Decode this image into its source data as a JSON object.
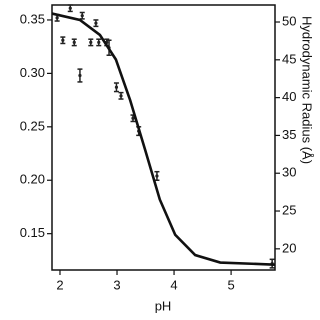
{
  "chart_data": {
    "type": "scatter",
    "xlabel": "pH",
    "y2label": "Hydrodynamic Radius (Å)",
    "xlim": [
      1.86,
      5.77
    ],
    "xticks": [
      2,
      3,
      4,
      5
    ],
    "ylim": [
      0.116,
      0.364
    ],
    "yticks": [
      {
        "value": 0.15,
        "label": "0.15"
      },
      {
        "value": 0.2,
        "label": "0.20"
      },
      {
        "value": 0.25,
        "label": "0.25"
      },
      {
        "value": 0.3,
        "label": "0.30"
      },
      {
        "value": 0.35,
        "label": "0.35"
      }
    ],
    "y2lim": [
      17.2,
      52.25
    ],
    "y2ticks": [
      20,
      25,
      30,
      35,
      40,
      45,
      50
    ],
    "series": [
      {
        "type": "errorbar",
        "color": "#222222",
        "x": [
          1.95,
          2.05,
          2.18,
          2.25,
          2.35,
          2.39,
          2.54,
          2.63,
          2.68,
          2.82,
          2.86,
          2.99,
          3.07,
          3.28,
          3.38,
          3.7,
          5.72
        ],
        "values": [
          0.352,
          0.331,
          0.361,
          0.329,
          0.298,
          0.354,
          0.329,
          0.347,
          0.329,
          0.329,
          0.324,
          0.287,
          0.279,
          0.258,
          0.246,
          0.204,
          0.122
        ],
        "errors": [
          0.003,
          0.003,
          0.003,
          0.003,
          0.006,
          0.003,
          0.003,
          0.003,
          0.003,
          0.003,
          0.007,
          0.004,
          0.003,
          0.003,
          0.004,
          0.004,
          0.004
        ]
      },
      {
        "type": "line",
        "color": "#111111",
        "x": [
          1.86,
          2.35,
          2.7,
          2.98,
          3.23,
          3.49,
          3.75,
          4.02,
          4.37,
          4.81,
          5.77
        ],
        "values": [
          0.356,
          0.35,
          0.336,
          0.313,
          0.275,
          0.229,
          0.182,
          0.149,
          0.13,
          0.123,
          0.121
        ]
      }
    ]
  }
}
